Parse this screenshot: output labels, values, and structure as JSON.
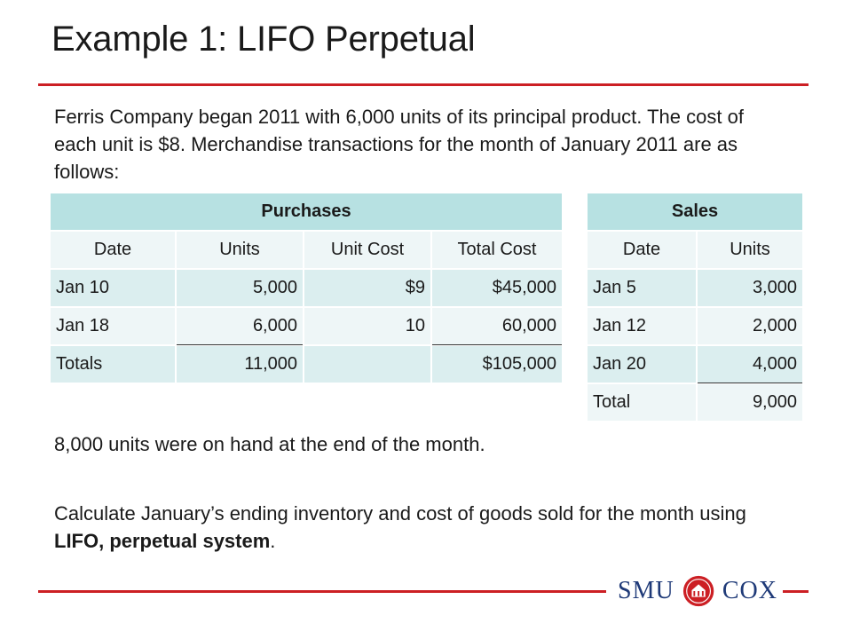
{
  "slide": {
    "title": "Example 1: LIFO Perpetual",
    "intro": "Ferris Company began 2011 with 6,000 units of its principal product. The cost of each unit is $8. Merchandise transactions for the month of January 2011 are as follows:",
    "on_hand": "8,000 units were on hand at the end of the month.",
    "task_prefix": "Calculate January’s ending inventory and cost of goods sold for the month using ",
    "task_bold": "LIFO, perpetual system",
    "task_suffix": "."
  },
  "purchases": {
    "title": "Purchases",
    "headers": [
      "Date",
      "Units",
      "Unit Cost",
      "Total Cost"
    ],
    "rows": [
      [
        "Jan 10",
        "5,000",
        "$9",
        "$45,000"
      ],
      [
        "Jan 18",
        "6,000",
        "10",
        "60,000"
      ],
      [
        "Totals",
        "11,000",
        "",
        "$105,000"
      ]
    ]
  },
  "sales": {
    "title": "Sales",
    "headers": [
      "Date",
      "Units"
    ],
    "rows": [
      [
        "Jan 5",
        "3,000"
      ],
      [
        "Jan 12",
        "2,000"
      ],
      [
        "Jan 20",
        "4,000"
      ],
      [
        "Total",
        "9,000"
      ]
    ]
  },
  "logo": {
    "left_text": "SMU",
    "right_text": "COX",
    "seal_icon": "smu-seal-icon",
    "color": "#1f3a78"
  },
  "colors": {
    "accent_rule": "#cc1f24",
    "table_header": "#b7e1e2",
    "table_row_dark": "#dbeeef",
    "table_row_light": "#eef6f7"
  }
}
